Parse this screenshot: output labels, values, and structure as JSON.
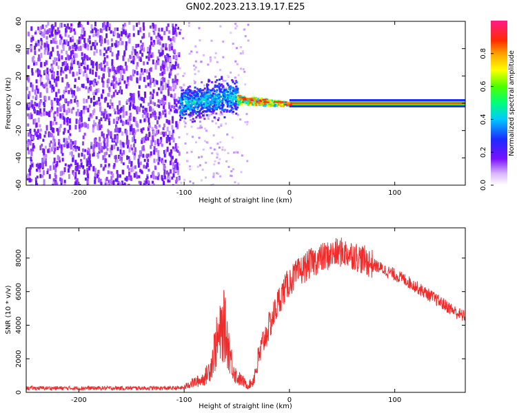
{
  "title": "GN02.2023.213.19.17.E25",
  "colors": {
    "snr_line": "#ee2c2c",
    "spectrogram_low": "#e8d6ff",
    "spectrogram_mid": "#7a1cff",
    "signal_band": "#d4134a",
    "axis": "#000000"
  },
  "chart_data": [
    {
      "type": "heatmap",
      "title": "GN02.2023.213.19.17.E25",
      "xlabel": "Height of straight line (km)",
      "ylabel": "Frequency (Hz)",
      "xlim": [
        -250,
        167
      ],
      "ylim": [
        -60,
        60
      ],
      "x_ticks": [
        -200,
        -100,
        0,
        100
      ],
      "y_ticks": [
        -60,
        -40,
        -20,
        0,
        20,
        40,
        60
      ],
      "colorbar": {
        "label": "Normalized spectral amplitude",
        "range": [
          0,
          1
        ],
        "ticks": [
          0.0,
          0.2,
          0.4,
          0.6,
          0.8
        ],
        "colormap": "rainbow (white-violet-blue-cyan-green-yellow-orange-red-pink)"
      },
      "regions": [
        {
          "x_range": [
            -250,
            -105
          ],
          "description": "broadband noise",
          "amplitude": 0.08
        },
        {
          "x_range": [
            -105,
            -50
          ],
          "freq_center": 0,
          "freq_halfwidth": 12,
          "amplitude": 0.3
        },
        {
          "x_range": [
            -50,
            0
          ],
          "freq_center": 3,
          "freq_halfwidth": 4,
          "amplitude": 0.75
        },
        {
          "x_range": [
            0,
            167
          ],
          "freq_center": 0,
          "freq_halfwidth": 1.5,
          "amplitude": 0.85
        }
      ],
      "grid": false
    },
    {
      "type": "line",
      "xlabel": "Height of straight line (km)",
      "ylabel": "SNR (10 * v/v)",
      "xlim": [
        -250,
        167
      ],
      "ylim": [
        0,
        9800
      ],
      "x_ticks": [
        -200,
        -100,
        0,
        100
      ],
      "y_ticks": [
        0,
        2000,
        4000,
        6000,
        8000
      ],
      "grid": false,
      "series": [
        {
          "color": "#ee2c2c",
          "x": [
            -250,
            -200,
            -150,
            -110,
            -100,
            -95,
            -90,
            -85,
            -80,
            -75,
            -70,
            -65,
            -62,
            -58,
            -55,
            -52,
            -50,
            -45,
            -40,
            -35,
            -30,
            -25,
            -20,
            -15,
            -10,
            -5,
            0,
            10,
            20,
            30,
            40,
            45,
            50,
            60,
            70,
            80,
            90,
            100,
            110,
            120,
            130,
            140,
            150,
            160,
            167
          ],
          "y": [
            250,
            250,
            250,
            250,
            280,
            500,
            600,
            700,
            900,
            1500,
            2800,
            3500,
            4000,
            2800,
            1800,
            1200,
            900,
            700,
            400,
            600,
            1800,
            3000,
            3800,
            4600,
            5500,
            6100,
            6600,
            7200,
            7700,
            8000,
            8200,
            8300,
            8350,
            8200,
            7900,
            7600,
            7300,
            7000,
            6700,
            6300,
            5900,
            5500,
            5100,
            4700,
            4500
          ]
        }
      ]
    }
  ]
}
